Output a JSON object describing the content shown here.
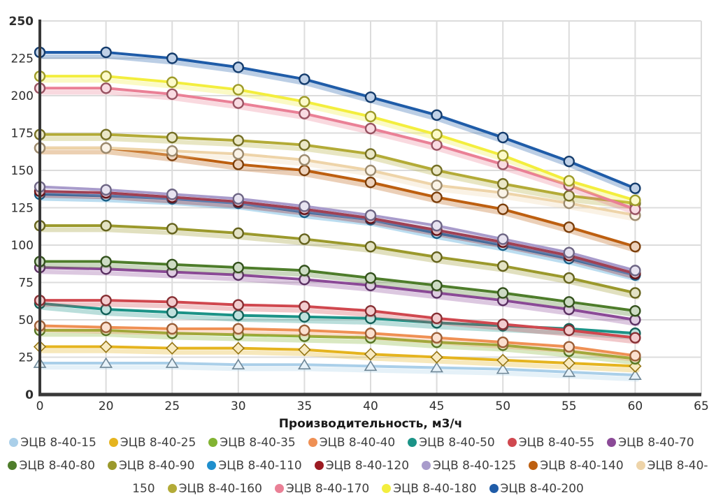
{
  "chart_data": {
    "type": "line",
    "title": "",
    "xlabel": "Производительность, м3/ч",
    "ylabel": "",
    "ylim": [
      0,
      250
    ],
    "y_tick_step": 25,
    "y_tick_labels": [
      "0",
      "25",
      "50",
      "75",
      "100",
      "125",
      "150",
      "175",
      "200",
      "225",
      "250"
    ],
    "x_tick_labels": [
      "0",
      "20",
      "25",
      "30",
      "35",
      "40",
      "45",
      "50",
      "55",
      "60",
      "65"
    ],
    "categories": [
      0,
      20,
      25,
      30,
      35,
      40,
      45,
      50,
      55,
      60
    ],
    "grid": true,
    "legend_position": "bottom",
    "axis_color": "#383838",
    "grid_color": "#dcdcdc",
    "label_color": "#2e2e2e",
    "series": [
      {
        "name": "ЭЦВ 8-40-15",
        "color": "#aacfe9",
        "marker": "triangle",
        "values": [
          21,
          21,
          21,
          20,
          20,
          19,
          18,
          17,
          15,
          13
        ]
      },
      {
        "name": "ЭЦВ 8-40-25",
        "color": "#e5b41f",
        "marker": "diamond",
        "values": [
          32,
          32,
          31,
          31,
          30,
          27,
          25,
          23,
          21,
          19
        ]
      },
      {
        "name": "ЭЦВ 8-40-35",
        "color": "#82b332",
        "marker": "circle",
        "values": [
          43,
          43,
          41,
          40,
          39,
          38,
          35,
          33,
          29,
          24
        ]
      },
      {
        "name": "ЭЦВ 8-40-40",
        "color": "#ef9054",
        "marker": "circle",
        "values": [
          46,
          45,
          44,
          44,
          43,
          41,
          38,
          35,
          32,
          26
        ]
      },
      {
        "name": "ЭЦВ 8-40-50",
        "color": "#1b9387",
        "marker": "circle",
        "values": [
          61,
          57,
          55,
          53,
          52,
          51,
          48,
          46,
          44,
          41
        ]
      },
      {
        "name": "ЭЦВ 8-40-55",
        "color": "#d0484f",
        "marker": "circle",
        "values": [
          63,
          63,
          62,
          60,
          59,
          56,
          51,
          47,
          43,
          38
        ]
      },
      {
        "name": "ЭЦВ 8-40-70",
        "color": "#8b4a97",
        "marker": "circle",
        "values": [
          85,
          84,
          82,
          80,
          77,
          73,
          68,
          63,
          57,
          50
        ]
      },
      {
        "name": "ЭЦВ 8-40-80",
        "color": "#4e7d2b",
        "marker": "circle",
        "values": [
          89,
          89,
          87,
          85,
          83,
          78,
          73,
          68,
          62,
          56
        ]
      },
      {
        "name": "ЭЦВ 8-40-90",
        "color": "#9b992c",
        "marker": "circle",
        "values": [
          113,
          113,
          111,
          108,
          104,
          99,
          92,
          86,
          78,
          68
        ]
      },
      {
        "name": "ЭЦВ 8-40-110",
        "color": "#1f8fcd",
        "marker": "circle",
        "values": [
          134,
          133,
          131,
          128,
          122,
          117,
          108,
          100,
          91,
          80
        ]
      },
      {
        "name": "ЭЦВ 8-40-120",
        "color": "#9c1b22",
        "marker": "circle",
        "values": [
          136,
          135,
          132,
          129,
          124,
          118,
          110,
          102,
          93,
          81
        ]
      },
      {
        "name": "ЭЦВ 8-40-125",
        "color": "#a89bcb",
        "marker": "circle",
        "values": [
          139,
          137,
          134,
          131,
          126,
          120,
          113,
          104,
          95,
          83
        ]
      },
      {
        "name": "ЭЦВ 8-40-140",
        "color": "#bd5f10",
        "marker": "circle",
        "values": [
          165,
          165,
          160,
          154,
          150,
          142,
          132,
          124,
          112,
          99
        ]
      },
      {
        "name": "ЭЦВ 8-40-150",
        "color": "#eed4a9",
        "marker": "circle",
        "values": [
          165,
          165,
          163,
          161,
          157,
          150,
          140,
          135,
          128,
          120
        ]
      },
      {
        "name": "ЭЦВ 8-40-160",
        "color": "#b3ab37",
        "marker": "circle",
        "values": [
          174,
          174,
          172,
          170,
          167,
          161,
          150,
          141,
          133,
          128
        ]
      },
      {
        "name": "ЭЦВ 8-40-170",
        "color": "#ea8096",
        "marker": "circle",
        "values": [
          205,
          205,
          201,
          195,
          188,
          178,
          167,
          154,
          140,
          124
        ]
      },
      {
        "name": "ЭЦВ 8-40-180",
        "color": "#f3ee3e",
        "marker": "circle",
        "values": [
          213,
          213,
          209,
          204,
          196,
          186,
          174,
          160,
          143,
          130
        ]
      },
      {
        "name": "ЭЦВ 8-40-200",
        "color": "#1f5ca8",
        "marker": "circle",
        "values": [
          229,
          229,
          225,
          219,
          211,
          199,
          187,
          172,
          156,
          138
        ]
      }
    ]
  }
}
